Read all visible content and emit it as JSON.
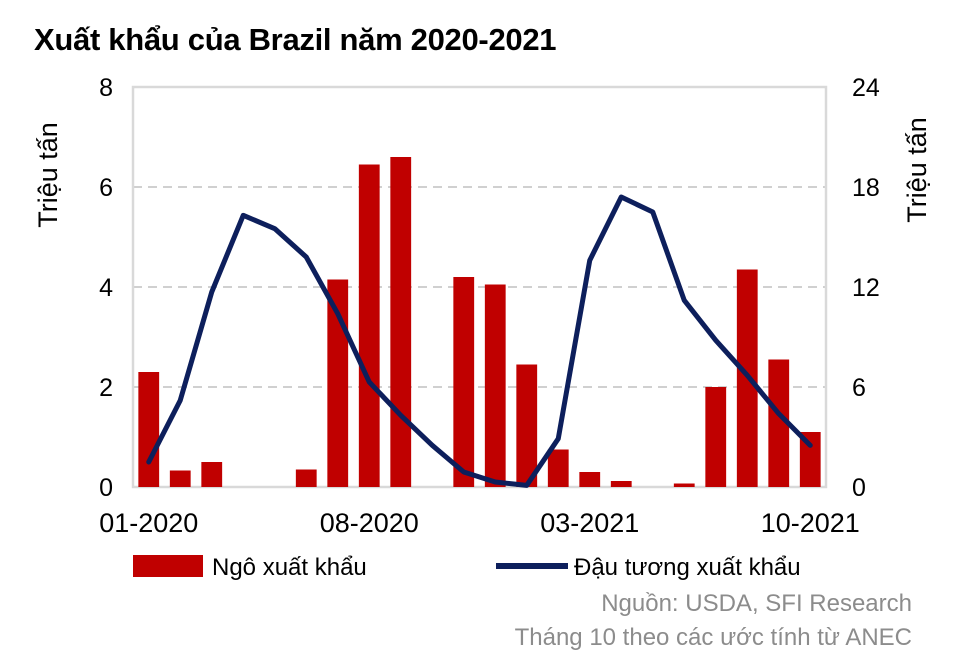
{
  "chart_data": {
    "type": "bar+line",
    "title": "Xuất khẩu của Brazil năm 2020-2021",
    "ylabel_left": "Triệu tấn",
    "ylabel_right": "Triệu tấn",
    "ylim_left": [
      0,
      8
    ],
    "ylim_right": [
      0,
      24
    ],
    "yticks_left": [
      "0",
      "2",
      "4",
      "6",
      "8"
    ],
    "yticks_right": [
      "0",
      "6",
      "12",
      "18",
      "24"
    ],
    "x": [
      "01-2020",
      "02-2020",
      "03-2020",
      "04-2020",
      "05-2020",
      "06-2020",
      "07-2020",
      "08-2020",
      "09-2020",
      "10-2020",
      "11-2020",
      "12-2020",
      "01-2021",
      "02-2021",
      "03-2021",
      "04-2021",
      "05-2021",
      "06-2021",
      "07-2021",
      "08-2021",
      "09-2021",
      "10-2021"
    ],
    "xtick_labels": [
      {
        "index": 0,
        "label": "01-2020"
      },
      {
        "index": 7,
        "label": "08-2020"
      },
      {
        "index": 14,
        "label": "03-2021"
      },
      {
        "index": 21,
        "label": "10-2021"
      }
    ],
    "grid": true,
    "legend_position": "bottom",
    "series": [
      {
        "name": "Ngô xuất khẩu",
        "kind": "bar",
        "axis": "left",
        "color": "#c00000",
        "values": [
          2.3,
          0.33,
          0.5,
          0,
          0,
          0.35,
          4.15,
          6.45,
          6.6,
          0,
          4.2,
          4.05,
          2.45,
          0.75,
          0.3,
          0.12,
          0,
          0.07,
          2.0,
          4.35,
          2.55,
          1.1
        ]
      },
      {
        "name": "Đậu tương xuất khẩu",
        "kind": "line",
        "axis": "right",
        "color": "#0d1f5c",
        "values": [
          1.5,
          5.2,
          11.7,
          16.3,
          15.5,
          13.8,
          10.4,
          6.3,
          4.3,
          2.5,
          0.9,
          0.3,
          0.1,
          2.9,
          13.6,
          17.4,
          16.5,
          11.2,
          8.8,
          6.7,
          4.4,
          2.5
        ]
      }
    ]
  },
  "footer": {
    "source": "Nguồn:  USDA, SFI Research",
    "note": "Tháng 10 theo các ước tính từ ANEC"
  }
}
